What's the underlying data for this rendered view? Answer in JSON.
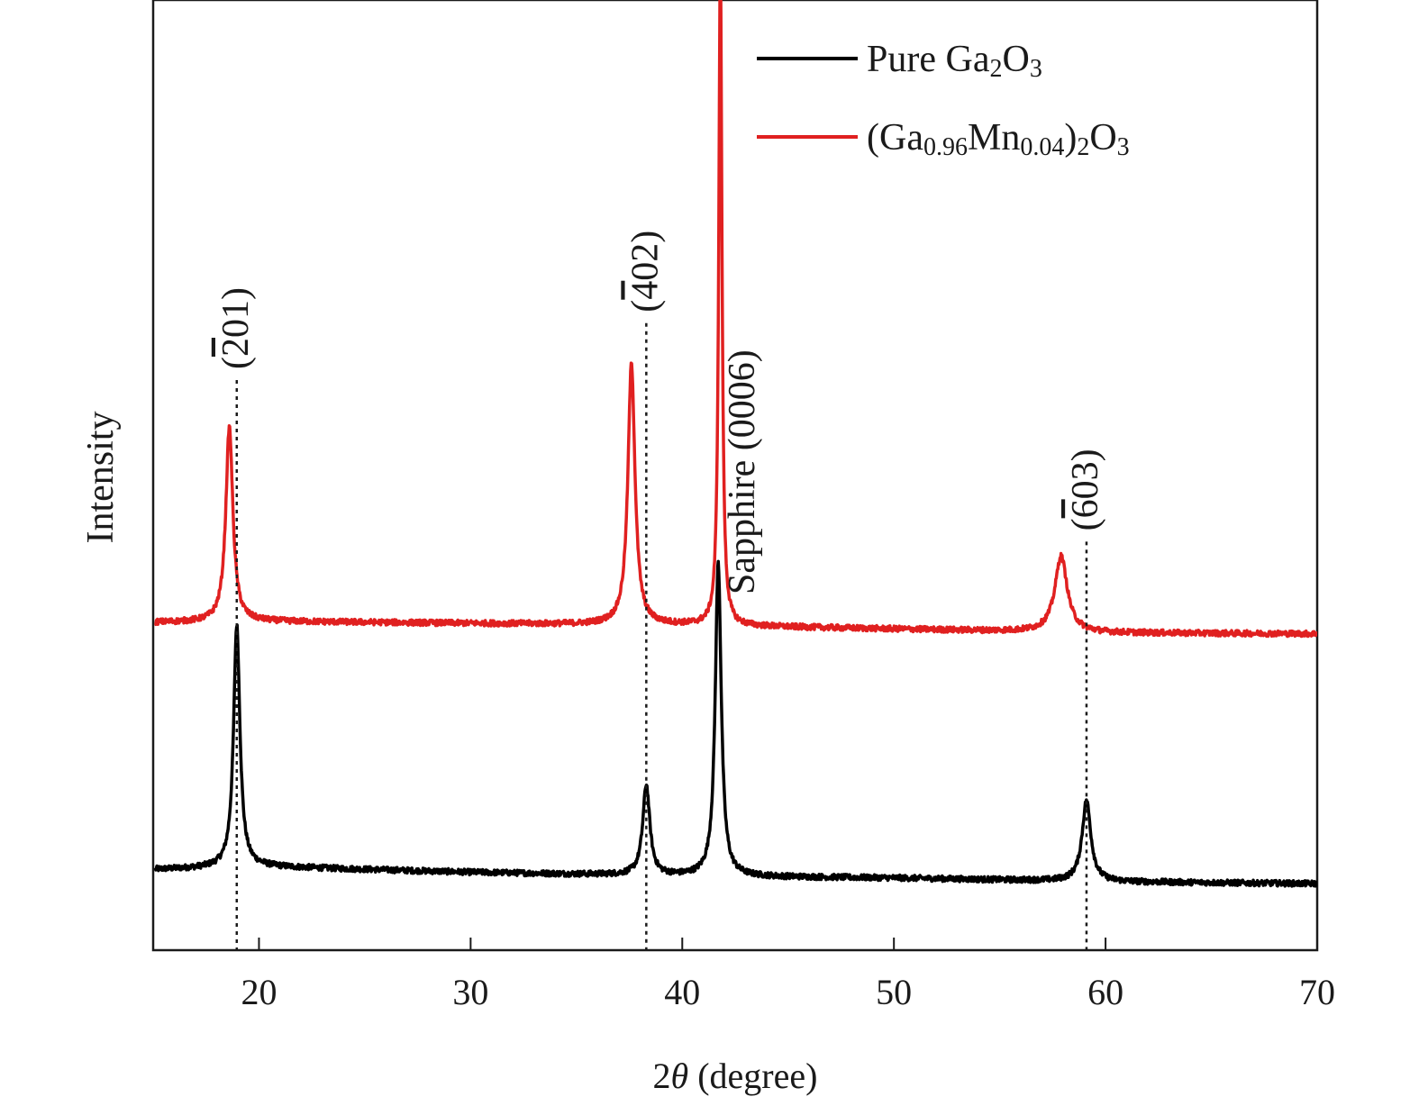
{
  "chart_data": {
    "type": "line",
    "xlabel_prefix": "2",
    "xlabel_symbol": "θ",
    "xlabel_suffix": " (degree)",
    "ylabel": "Intensity",
    "xlim": [
      15,
      70
    ],
    "xticks": [
      20,
      30,
      40,
      50,
      60,
      70
    ],
    "yticks": [],
    "grid": false,
    "legend_position": "top-right",
    "series": [
      {
        "name": "Pure Ga2O3",
        "legend_parts": [
          {
            "t": "Pure Ga",
            "sub": false
          },
          {
            "t": "2",
            "sub": true
          },
          {
            "t": "O",
            "sub": false
          },
          {
            "t": "3",
            "sub": true
          }
        ],
        "color": "#000000",
        "baseline": [
          [
            15.1,
            0.085
          ],
          [
            20,
            0.088
          ],
          [
            30,
            0.082
          ],
          [
            40,
            0.078
          ],
          [
            50,
            0.076
          ],
          [
            60,
            0.072
          ],
          [
            70,
            0.07
          ]
        ],
        "peaks": [
          {
            "x": 18.95,
            "height": 0.255,
            "width": 0.18
          },
          {
            "x": 38.3,
            "height": 0.095,
            "width": 0.2
          },
          {
            "x": 41.7,
            "height": 0.33,
            "width": 0.17
          },
          {
            "x": 59.1,
            "height": 0.085,
            "width": 0.25
          }
        ]
      },
      {
        "name": "(Ga0.96Mn0.04)2O3",
        "legend_parts": [
          {
            "t": "(Ga",
            "sub": false
          },
          {
            "t": "0.96",
            "sub": true
          },
          {
            "t": "Mn",
            "sub": false
          },
          {
            "t": "0.04",
            "sub": true
          },
          {
            "t": ")",
            "sub": false
          },
          {
            "t": "2",
            "sub": true
          },
          {
            "t": "O",
            "sub": false
          },
          {
            "t": "3",
            "sub": true
          }
        ],
        "color": "#e02020",
        "baseline": [
          [
            15.1,
            0.345
          ],
          [
            20,
            0.346
          ],
          [
            30,
            0.344
          ],
          [
            40,
            0.342
          ],
          [
            50,
            0.338
          ],
          [
            60,
            0.334
          ],
          [
            70,
            0.333
          ]
        ],
        "peaks": [
          {
            "x": 18.6,
            "height": 0.205,
            "width": 0.2
          },
          {
            "x": 37.6,
            "height": 0.275,
            "width": 0.2
          },
          {
            "x": 41.8,
            "height": 0.7,
            "width": 0.09
          },
          {
            "x": 57.9,
            "height": 0.08,
            "width": 0.35
          }
        ]
      }
    ],
    "annotations": [
      {
        "x": 18.95,
        "label_bar": "2",
        "label_rest": "01",
        "line_top": 0.6
      },
      {
        "x": 38.3,
        "label_bar": "4",
        "label_rest": "02",
        "line_top": 0.66
      },
      {
        "x": 59.1,
        "label_bar": "6",
        "label_rest": "03",
        "line_top": 0.43
      },
      {
        "x": 43.4,
        "label_text": "Sapphire (0006)"
      }
    ]
  }
}
